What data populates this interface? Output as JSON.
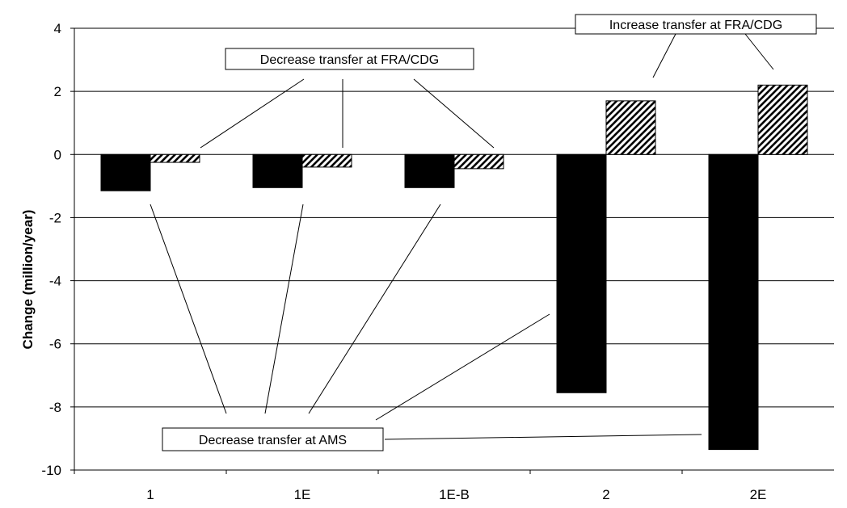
{
  "chart_data": {
    "type": "bar",
    "title": "",
    "xlabel": "",
    "ylabel": "Change (million/year)",
    "categories": [
      "1",
      "1E",
      "1E-B",
      "2",
      "2E"
    ],
    "series": [
      {
        "values": [
          -1.15,
          -1.05,
          -1.05,
          -7.55,
          -9.35
        ],
        "color": "#000000",
        "pattern": "solid"
      },
      {
        "values": [
          -0.25,
          -0.4,
          -0.45,
          1.7,
          2.2
        ],
        "color": "#000000",
        "pattern": "diagonal-hatch"
      }
    ],
    "ylim": [
      -10,
      4
    ],
    "yticks": [
      4,
      2,
      0,
      -2,
      -4,
      -6,
      -8,
      -10
    ],
    "grid": true,
    "legend": "none",
    "annotations": [
      {
        "id": "increase-fra",
        "text": "Increase transfer at FRA/CDG"
      },
      {
        "id": "decrease-fra",
        "text": "Decrease transfer at FRA/CDG"
      },
      {
        "id": "decrease-ams",
        "text": "Decrease transfer at AMS"
      }
    ]
  }
}
